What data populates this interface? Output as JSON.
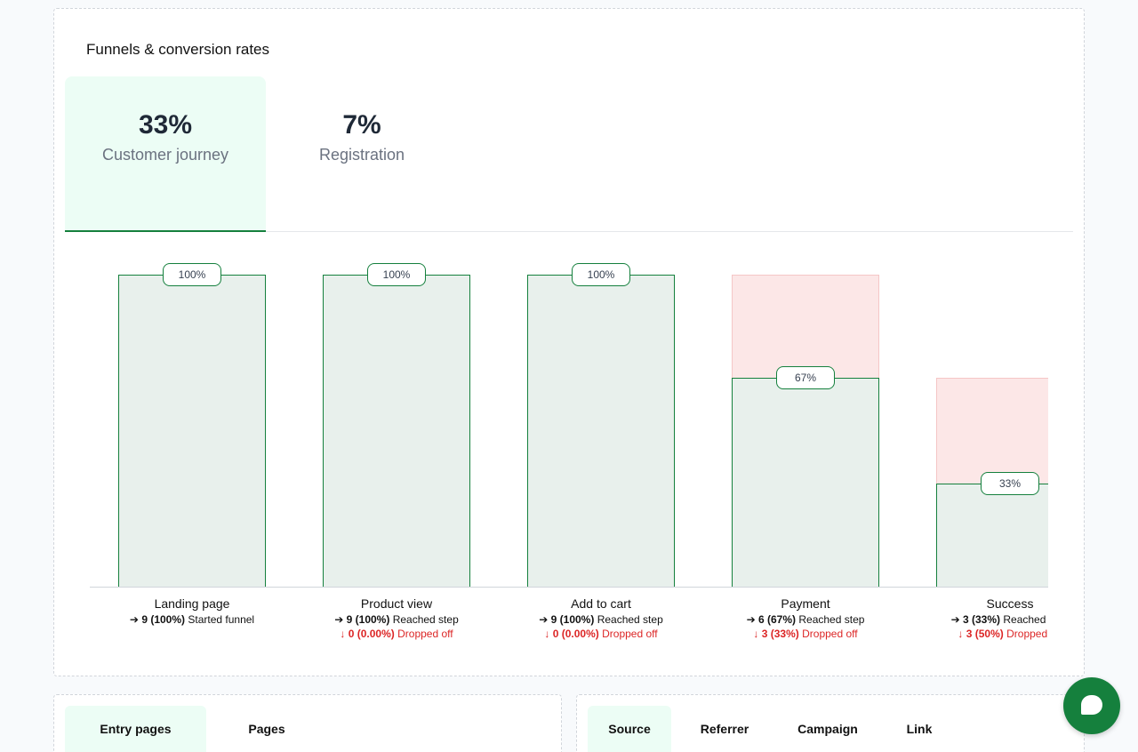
{
  "funnel_card": {
    "title": "Funnels & conversion rates",
    "tabs": [
      {
        "pct": "33%",
        "label": "Customer journey",
        "active": true
      },
      {
        "pct": "7%",
        "label": "Registration",
        "active": false
      }
    ]
  },
  "chart_data": {
    "type": "bar",
    "categories": [
      "Landing page",
      "Product view",
      "Add to cart",
      "Payment",
      "Success"
    ],
    "reached_counts": [
      9,
      9,
      9,
      6,
      3
    ],
    "reached_pct_of_start": [
      100,
      100,
      100,
      67,
      33
    ],
    "previous_pct_of_start": [
      100,
      100,
      100,
      100,
      67
    ],
    "badges": [
      "100%",
      "100%",
      "100%",
      "67%",
      "33%"
    ],
    "ylim": [
      0,
      100
    ],
    "colors": {
      "reached_fill": "#e8f0ec",
      "reached_border": "#15803d",
      "dropped_fill": "#fce7e7",
      "dropped_border": "#f5c6c6"
    },
    "steps": [
      {
        "name": "Landing page",
        "reached_value": "9 (100%)",
        "reached_text": "Started funnel",
        "drop_value": null,
        "drop_text": null
      },
      {
        "name": "Product view",
        "reached_value": "9 (100%)",
        "reached_text": "Reached step",
        "drop_value": "0 (0.00%)",
        "drop_text": "Dropped off"
      },
      {
        "name": "Add to cart",
        "reached_value": "9 (100%)",
        "reached_text": "Reached step",
        "drop_value": "0 (0.00%)",
        "drop_text": "Dropped off"
      },
      {
        "name": "Payment",
        "reached_value": "6 (67%)",
        "reached_text": "Reached step",
        "drop_value": "3 (33%)",
        "drop_text": "Dropped off"
      },
      {
        "name": "Success",
        "reached_value": "3 (33%)",
        "reached_text": "Reached step",
        "drop_value": "3 (50%)",
        "drop_text": "Dropped off"
      }
    ]
  },
  "pages_card": {
    "tabs": [
      {
        "label": "Entry pages",
        "active": true
      },
      {
        "label": "Pages",
        "active": false
      }
    ]
  },
  "sources_card": {
    "tabs": [
      {
        "label": "Source",
        "active": true
      },
      {
        "label": "Referrer",
        "active": false
      },
      {
        "label": "Campaign",
        "active": false
      },
      {
        "label": "Link",
        "active": false
      }
    ]
  },
  "icons": {
    "chat": "chat-bubble-icon",
    "reached": "arrow-right-icon",
    "dropped": "arrow-down-icon"
  }
}
